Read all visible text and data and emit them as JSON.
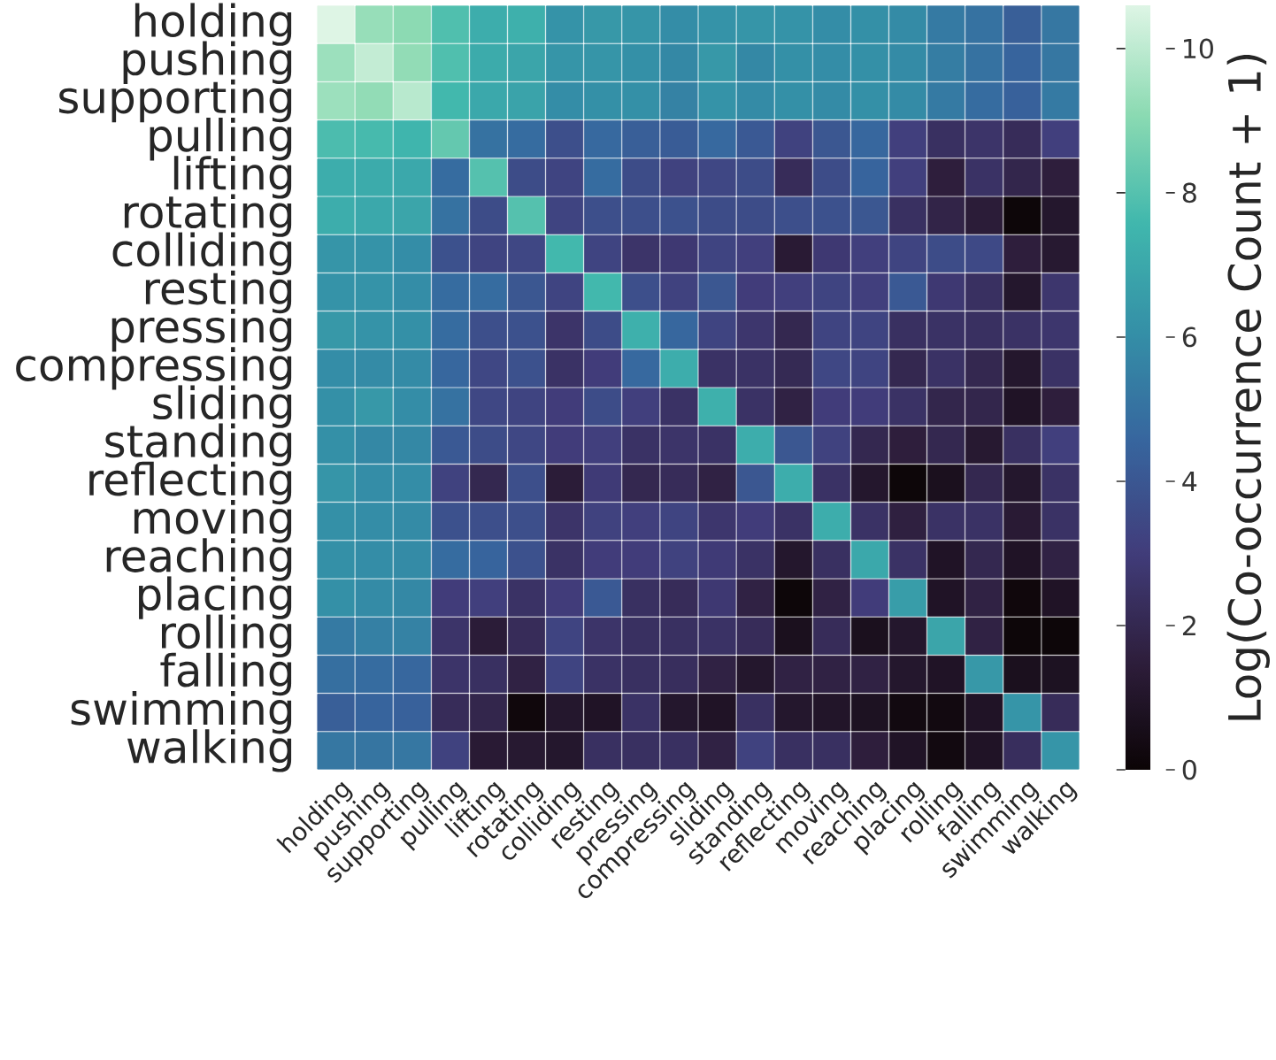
{
  "chart_data": {
    "type": "heatmap",
    "categories": [
      "holding",
      "pushing",
      "supporting",
      "pulling",
      "lifting",
      "rotating",
      "colliding",
      "resting",
      "pressing",
      "compressing",
      "sliding",
      "standing",
      "reflecting",
      "moving",
      "reaching",
      "placing",
      "rolling",
      "falling",
      "swimming",
      "walking"
    ],
    "y_categories": [
      "holding",
      "pushing",
      "supporting",
      "pulling",
      "lifting",
      "rotating",
      "colliding",
      "resting",
      "pressing",
      "compressing",
      "sliding",
      "standing",
      "reflecting",
      "moving",
      "reaching",
      "placing",
      "rolling",
      "falling",
      "swimming",
      "walking"
    ],
    "cells": [
      [
        10.6,
        9.3,
        9.1,
        7.9,
        7.2,
        7.3,
        6.2,
        6.4,
        6.3,
        6.0,
        6.2,
        6.3,
        6.2,
        6.0,
        6.1,
        5.9,
        5.3,
        5.0,
        4.3,
        5.2
      ],
      [
        9.4,
        10.1,
        9.2,
        7.9,
        7.1,
        6.9,
        6.3,
        6.3,
        6.1,
        5.8,
        6.4,
        5.8,
        6.1,
        6.0,
        6.1,
        5.9,
        5.4,
        5.0,
        4.5,
        5.2
      ],
      [
        9.4,
        9.2,
        9.9,
        7.6,
        7.0,
        6.8,
        6.0,
        6.1,
        6.1,
        5.6,
        6.2,
        5.9,
        6.1,
        5.9,
        6.1,
        5.9,
        5.3,
        4.8,
        4.4,
        5.3
      ],
      [
        7.8,
        7.7,
        7.5,
        8.3,
        5.0,
        4.8,
        3.7,
        4.7,
        4.3,
        4.2,
        4.7,
        4.1,
        3.2,
        4.0,
        4.6,
        3.1,
        2.4,
        2.6,
        2.2,
        3.1
      ],
      [
        7.2,
        7.1,
        7.0,
        4.8,
        8.0,
        3.6,
        3.3,
        4.8,
        3.6,
        3.2,
        3.4,
        3.6,
        2.2,
        3.6,
        4.5,
        3.1,
        1.5,
        2.5,
        1.9,
        1.5
      ],
      [
        7.2,
        7.0,
        6.9,
        5.0,
        3.6,
        8.0,
        3.3,
        3.7,
        3.7,
        3.8,
        3.6,
        3.6,
        3.7,
        3.8,
        4.0,
        2.4,
        1.8,
        1.4,
        0.1,
        1.1
      ],
      [
        6.3,
        6.2,
        6.0,
        3.8,
        3.3,
        3.4,
        7.6,
        3.3,
        2.6,
        2.8,
        3.3,
        3.1,
        1.3,
        2.8,
        3.1,
        3.3,
        3.6,
        3.5,
        1.5,
        1.2
      ],
      [
        6.2,
        6.2,
        6.0,
        4.8,
        4.8,
        4.0,
        3.3,
        7.6,
        3.7,
        3.2,
        4.0,
        3.0,
        3.1,
        3.3,
        3.1,
        4.1,
        2.8,
        2.4,
        1.1,
        2.7
      ],
      [
        6.4,
        6.2,
        6.1,
        4.8,
        3.7,
        3.8,
        2.6,
        3.6,
        7.3,
        4.6,
        3.3,
        2.7,
        2.0,
        3.3,
        3.3,
        2.4,
        2.5,
        2.4,
        2.5,
        2.7
      ],
      [
        6.0,
        5.9,
        5.9,
        4.6,
        3.4,
        3.8,
        2.5,
        3.0,
        4.7,
        7.2,
        2.5,
        2.5,
        2.1,
        3.4,
        3.3,
        2.0,
        2.5,
        2.0,
        1.1,
        2.5
      ],
      [
        6.1,
        6.4,
        6.0,
        5.0,
        3.4,
        3.3,
        3.0,
        3.6,
        3.1,
        2.5,
        7.3,
        2.5,
        1.7,
        3.0,
        3.0,
        2.5,
        1.9,
        1.9,
        0.9,
        1.5
      ],
      [
        6.1,
        5.8,
        5.8,
        4.1,
        3.6,
        3.4,
        3.0,
        3.1,
        2.5,
        2.6,
        2.5,
        7.2,
        4.0,
        3.2,
        2.0,
        1.5,
        2.0,
        1.2,
        2.4,
        3.1
      ],
      [
        6.3,
        6.0,
        6.0,
        3.2,
        2.0,
        3.7,
        1.4,
        2.9,
        2.0,
        2.2,
        1.7,
        4.0,
        7.2,
        2.5,
        1.1,
        0.1,
        0.7,
        2.0,
        1.1,
        2.5
      ],
      [
        6.1,
        6.0,
        5.9,
        3.8,
        3.7,
        3.7,
        2.6,
        3.2,
        3.1,
        3.3,
        2.7,
        3.0,
        2.5,
        7.2,
        2.5,
        1.6,
        2.5,
        2.5,
        1.3,
        2.5
      ],
      [
        6.1,
        6.0,
        5.9,
        4.8,
        4.5,
        3.8,
        2.5,
        3.0,
        3.0,
        3.2,
        2.9,
        2.5,
        1.1,
        2.4,
        7.0,
        2.5,
        0.9,
        2.0,
        0.9,
        1.7
      ],
      [
        6.1,
        5.9,
        5.8,
        3.0,
        3.1,
        2.5,
        3.0,
        4.1,
        2.4,
        2.2,
        2.8,
        1.7,
        0.1,
        1.7,
        3.0,
        6.6,
        0.9,
        1.7,
        0.2,
        0.9
      ],
      [
        5.3,
        5.5,
        5.6,
        2.6,
        1.4,
        2.2,
        3.3,
        2.6,
        2.4,
        2.4,
        2.5,
        2.2,
        0.7,
        2.2,
        0.7,
        1.1,
        6.9,
        1.7,
        0.1,
        0.1
      ],
      [
        4.9,
        4.8,
        4.6,
        2.6,
        2.4,
        1.7,
        3.3,
        2.5,
        2.4,
        2.3,
        1.7,
        1.1,
        1.7,
        1.7,
        1.7,
        1.1,
        0.9,
        6.4,
        0.7,
        0.8
      ],
      [
        4.3,
        4.5,
        4.4,
        2.2,
        1.9,
        0.2,
        1.1,
        0.9,
        2.5,
        1.1,
        0.9,
        2.4,
        1.1,
        1.0,
        0.8,
        0.3,
        0.3,
        0.9,
        6.3,
        2.2
      ],
      [
        5.2,
        5.1,
        5.2,
        3.2,
        1.3,
        1.2,
        1.1,
        2.4,
        2.4,
        2.4,
        1.7,
        3.2,
        2.4,
        2.4,
        1.5,
        0.9,
        0.3,
        0.9,
        2.3,
        6.3
      ]
    ],
    "clabel": "Log(Co-occurrence Count + 1)",
    "clim": [
      0,
      10.6
    ],
    "cticks": [
      0,
      2,
      4,
      6,
      8,
      10
    ]
  }
}
